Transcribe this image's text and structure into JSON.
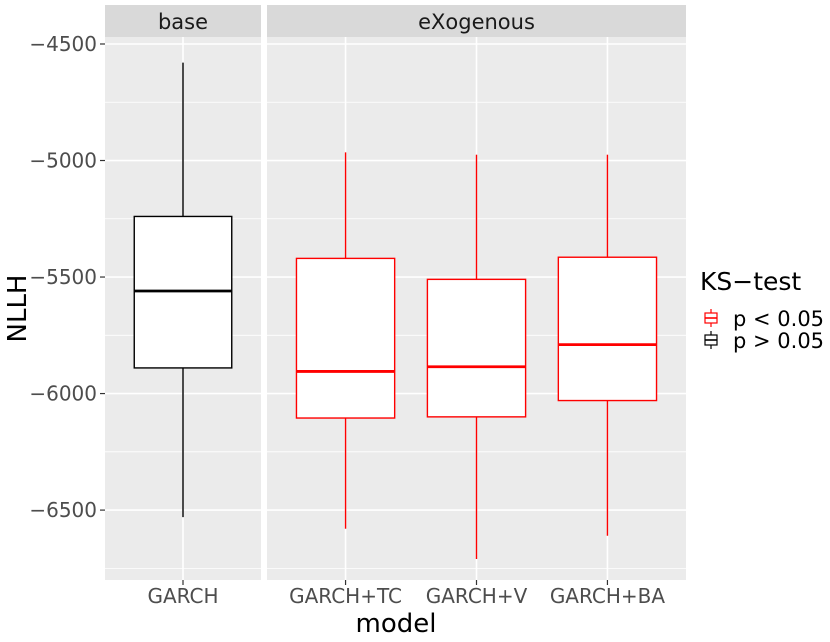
{
  "chart_data": {
    "type": "boxplot",
    "xlabel": "model",
    "ylabel": "NLLH",
    "ylim": [
      -6800,
      -4470
    ],
    "y_ticks": [
      -4500,
      -5000,
      -5500,
      -6000,
      -6500
    ],
    "y_tick_labels": [
      "−4500",
      "−5000",
      "−5500",
      "−6000",
      "−6500"
    ],
    "grid": true,
    "legend_position": "right",
    "legend": {
      "title": "KS−test",
      "entries": [
        {
          "label": "p < 0.05",
          "color": "#ff0000"
        },
        {
          "label": "p > 0.05",
          "color": "#000000"
        }
      ]
    },
    "panels": [
      {
        "strip": "base",
        "boxes": [
          {
            "category": "GARCH",
            "ks_group": "p > 0.05",
            "color": "#000000",
            "whisker_low": -6530,
            "q1": -5890,
            "median": -5560,
            "q3": -5240,
            "whisker_high": -4580
          }
        ]
      },
      {
        "strip": "eXogenous",
        "boxes": [
          {
            "category": "GARCH+TC",
            "ks_group": "p < 0.05",
            "color": "#ff0000",
            "whisker_low": -6580,
            "q1": -6105,
            "median": -5905,
            "q3": -5420,
            "whisker_high": -4965
          },
          {
            "category": "GARCH+V",
            "ks_group": "p < 0.05",
            "color": "#ff0000",
            "whisker_low": -6710,
            "q1": -6100,
            "median": -5885,
            "q3": -5510,
            "whisker_high": -4975
          },
          {
            "category": "GARCH+BA",
            "ks_group": "p < 0.05",
            "color": "#ff0000",
            "whisker_low": -6610,
            "q1": -6030,
            "median": -5790,
            "q3": -5415,
            "whisker_high": -4975
          }
        ]
      }
    ]
  }
}
